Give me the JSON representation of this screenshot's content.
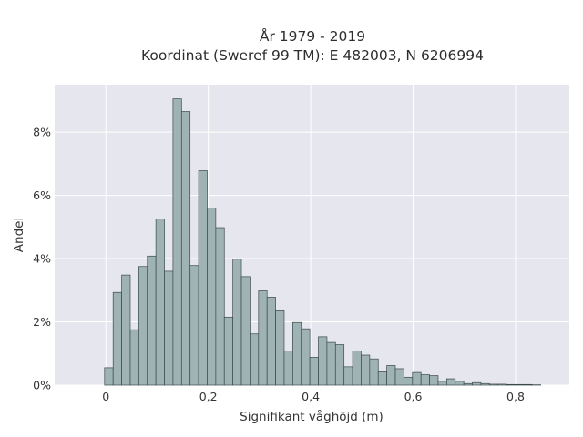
{
  "chart_data": {
    "type": "bar",
    "title_lines": [
      "År 1979 - 2019",
      "Koordinat (Sweref 99 TM): E 482003, N 6206994"
    ],
    "xlabel": "Signifikant våghöjd (m)",
    "ylabel": "Andel",
    "bin_start": -0.0025,
    "bin_width": 0.0167,
    "values": [
      0.55,
      2.93,
      3.48,
      1.75,
      3.75,
      4.08,
      5.25,
      3.6,
      9.05,
      8.65,
      3.78,
      6.78,
      5.6,
      4.98,
      2.15,
      3.98,
      3.43,
      1.62,
      2.98,
      2.78,
      2.35,
      1.08,
      1.98,
      1.78,
      0.88,
      1.53,
      1.35,
      1.28,
      0.58,
      1.08,
      0.95,
      0.83,
      0.42,
      0.62,
      0.52,
      0.25,
      0.4,
      0.33,
      0.3,
      0.12,
      0.2,
      0.12,
      0.05,
      0.08,
      0.05,
      0.03,
      0.03,
      0.02,
      0.02,
      0.02,
      0.01
    ],
    "xlim": [
      -0.1,
      0.905
    ],
    "ylim": [
      0,
      9.5
    ],
    "xticks": [
      {
        "value": 0,
        "label": "0"
      },
      {
        "value": 0.2,
        "label": "0,2"
      },
      {
        "value": 0.4,
        "label": "0,4"
      },
      {
        "value": 0.6,
        "label": "0,6"
      },
      {
        "value": 0.8,
        "label": "0,8"
      }
    ],
    "yticks": [
      {
        "value": 0,
        "label": "0%"
      },
      {
        "value": 2,
        "label": "2%"
      },
      {
        "value": 4,
        "label": "4%"
      },
      {
        "value": 6,
        "label": "6%"
      },
      {
        "value": 8,
        "label": "8%"
      }
    ],
    "grid": true,
    "colors": {
      "background": "#e6e6ef",
      "grid": "#ffffff",
      "bar_fill": "#9fb3b4",
      "bar_stroke": "#3a4a4a"
    }
  }
}
